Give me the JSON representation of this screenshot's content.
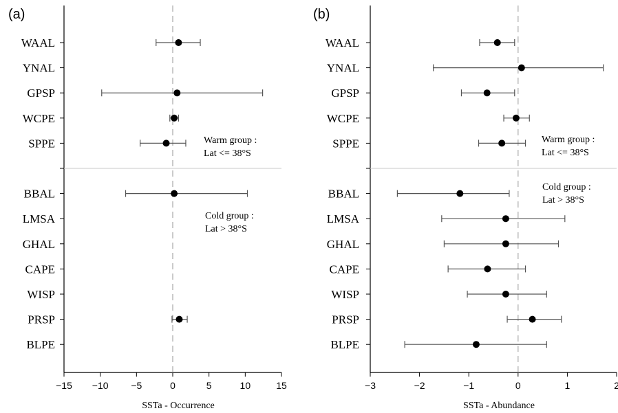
{
  "chart_data": [
    {
      "type": "scatter",
      "panel_label": "(a)",
      "xlabel": "SSTa - Occurrence",
      "ylabel": "",
      "xlim": [
        -15,
        15
      ],
      "xticks": [
        -15,
        -10,
        -5,
        0,
        5,
        10,
        15
      ],
      "grid": false,
      "reference_line_x": 0,
      "groups": [
        {
          "annotation": [
            "Warm group :",
            "Lat <= 38°S"
          ],
          "rows": [
            {
              "label": "WAAL",
              "x": 0.8,
              "lo": -2.3,
              "hi": 3.8
            },
            {
              "label": "YNAL",
              "x": null,
              "lo": null,
              "hi": null
            },
            {
              "label": "GPSP",
              "x": 0.6,
              "lo": -9.8,
              "hi": 12.4
            },
            {
              "label": "WCPE",
              "x": 0.2,
              "lo": -0.4,
              "hi": 0.8
            },
            {
              "label": "SPPE",
              "x": -0.9,
              "lo": -4.5,
              "hi": 1.8
            }
          ]
        },
        {
          "annotation": [
            "Cold group :",
            "Lat > 38°S"
          ],
          "rows": [
            {
              "label": "BBAL",
              "x": 0.2,
              "lo": -6.5,
              "hi": 10.3
            },
            {
              "label": "LMSA",
              "x": null,
              "lo": null,
              "hi": null
            },
            {
              "label": "GHAL",
              "x": null,
              "lo": null,
              "hi": null
            },
            {
              "label": "CAPE",
              "x": null,
              "lo": null,
              "hi": null
            },
            {
              "label": "WISP",
              "x": null,
              "lo": null,
              "hi": null
            },
            {
              "label": "PRSP",
              "x": 0.9,
              "lo": -0.1,
              "hi": 2.0
            },
            {
              "label": "BLPE",
              "x": null,
              "lo": null,
              "hi": null
            }
          ]
        }
      ]
    },
    {
      "type": "scatter",
      "panel_label": "(b)",
      "xlabel": "SSTa - Abundance",
      "ylabel": "",
      "xlim": [
        -3,
        2
      ],
      "xticks": [
        -3,
        -2,
        -1,
        0,
        1,
        2
      ],
      "grid": false,
      "reference_line_x": 0,
      "groups": [
        {
          "annotation": [
            "Warm group :",
            "Lat <= 38°S"
          ],
          "rows": [
            {
              "label": "WAAL",
              "x": -0.42,
              "lo": -0.78,
              "hi": -0.07
            },
            {
              "label": "YNAL",
              "x": 0.07,
              "lo": -1.72,
              "hi": 1.73
            },
            {
              "label": "GPSP",
              "x": -0.63,
              "lo": -1.15,
              "hi": -0.07
            },
            {
              "label": "WCPE",
              "x": -0.04,
              "lo": -0.29,
              "hi": 0.23
            },
            {
              "label": "SPPE",
              "x": -0.33,
              "lo": -0.8,
              "hi": 0.15
            }
          ]
        },
        {
          "annotation": [
            "Cold group :",
            "Lat > 38°S"
          ],
          "rows": [
            {
              "label": "BBAL",
              "x": -1.18,
              "lo": -2.45,
              "hi": -0.18
            },
            {
              "label": "LMSA",
              "x": -0.25,
              "lo": -1.55,
              "hi": 0.95
            },
            {
              "label": "GHAL",
              "x": -0.25,
              "lo": -1.5,
              "hi": 0.82
            },
            {
              "label": "CAPE",
              "x": -0.62,
              "lo": -1.42,
              "hi": 0.15
            },
            {
              "label": "WISP",
              "x": -0.25,
              "lo": -1.03,
              "hi": 0.58
            },
            {
              "label": "PRSP",
              "x": 0.29,
              "lo": -0.22,
              "hi": 0.88
            },
            {
              "label": "BLPE",
              "x": -0.85,
              "lo": -2.3,
              "hi": 0.58
            }
          ]
        }
      ]
    }
  ]
}
